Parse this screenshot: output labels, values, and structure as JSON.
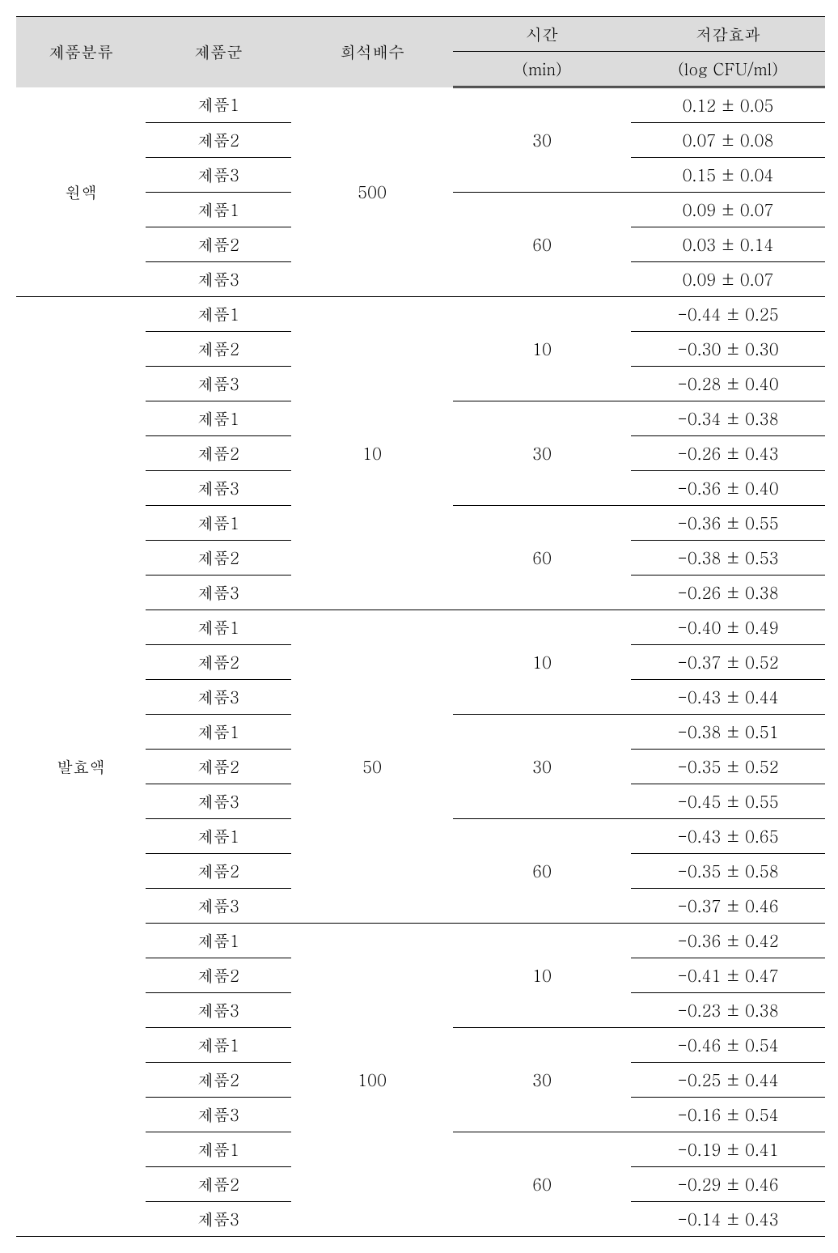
{
  "headers": {
    "category": "제품분류",
    "group": "제품군",
    "dilution": "희석배수",
    "time_top": "시간",
    "time_bot": "(min)",
    "effect_top": "저감효과",
    "effect_bot": "(log CFU/ml)"
  },
  "colors": {
    "header_bg": "#dcdcdc",
    "border": "#000000",
    "text": "#000000",
    "bg": "#ffffff"
  },
  "rows": [
    {
      "cat": "원액",
      "grp": "제품1",
      "dil": "500",
      "tim": "30",
      "eff": "0.12 ± 0.05"
    },
    {
      "cat": "원액",
      "grp": "제품2",
      "dil": "500",
      "tim": "30",
      "eff": "0.07 ± 0.08"
    },
    {
      "cat": "원액",
      "grp": "제품3",
      "dil": "500",
      "tim": "30",
      "eff": "0.15 ± 0.04"
    },
    {
      "cat": "원액",
      "grp": "제품1",
      "dil": "500",
      "tim": "60",
      "eff": "0.09 ± 0.07"
    },
    {
      "cat": "원액",
      "grp": "제품2",
      "dil": "500",
      "tim": "60",
      "eff": "0.03 ± 0.14"
    },
    {
      "cat": "원액",
      "grp": "제품3",
      "dil": "500",
      "tim": "60",
      "eff": "0.09 ± 0.07"
    },
    {
      "cat": "발효액",
      "grp": "제품1",
      "dil": "10",
      "tim": "10",
      "eff": "-0.44 ± 0.25"
    },
    {
      "cat": "발효액",
      "grp": "제품2",
      "dil": "10",
      "tim": "10",
      "eff": "-0.30 ± 0.30"
    },
    {
      "cat": "발효액",
      "grp": "제품3",
      "dil": "10",
      "tim": "10",
      "eff": "-0.28 ± 0.40"
    },
    {
      "cat": "발효액",
      "grp": "제품1",
      "dil": "10",
      "tim": "30",
      "eff": "-0.34 ± 0.38"
    },
    {
      "cat": "발효액",
      "grp": "제품2",
      "dil": "10",
      "tim": "30",
      "eff": "-0.26 ± 0.43"
    },
    {
      "cat": "발효액",
      "grp": "제품3",
      "dil": "10",
      "tim": "30",
      "eff": "-0.36 ± 0.40"
    },
    {
      "cat": "발효액",
      "grp": "제품1",
      "dil": "10",
      "tim": "60",
      "eff": "-0.36 ± 0.55"
    },
    {
      "cat": "발효액",
      "grp": "제품2",
      "dil": "10",
      "tim": "60",
      "eff": "-0.38 ± 0.53"
    },
    {
      "cat": "발효액",
      "grp": "제품3",
      "dil": "10",
      "tim": "60",
      "eff": "-0.26 ± 0.38"
    },
    {
      "cat": "발효액",
      "grp": "제품1",
      "dil": "50",
      "tim": "10",
      "eff": "-0.40 ± 0.49"
    },
    {
      "cat": "발효액",
      "grp": "제품2",
      "dil": "50",
      "tim": "10",
      "eff": "-0.37 ± 0.52"
    },
    {
      "cat": "발효액",
      "grp": "제품3",
      "dil": "50",
      "tim": "10",
      "eff": "-0.43 ± 0.44"
    },
    {
      "cat": "발효액",
      "grp": "제품1",
      "dil": "50",
      "tim": "30",
      "eff": "-0.38 ± 0.51"
    },
    {
      "cat": "발효액",
      "grp": "제품2",
      "dil": "50",
      "tim": "30",
      "eff": "-0.35 ± 0.52"
    },
    {
      "cat": "발효액",
      "grp": "제품3",
      "dil": "50",
      "tim": "30",
      "eff": "-0.45 ± 0.55"
    },
    {
      "cat": "발효액",
      "grp": "제품1",
      "dil": "50",
      "tim": "60",
      "eff": "-0.43 ± 0.65"
    },
    {
      "cat": "발효액",
      "grp": "제품2",
      "dil": "50",
      "tim": "60",
      "eff": "-0.35 ± 0.58"
    },
    {
      "cat": "발효액",
      "grp": "제품3",
      "dil": "50",
      "tim": "60",
      "eff": "-0.37 ± 0.46"
    },
    {
      "cat": "발효액",
      "grp": "제품1",
      "dil": "100",
      "tim": "10",
      "eff": "-0.36 ± 0.42"
    },
    {
      "cat": "발효액",
      "grp": "제품2",
      "dil": "100",
      "tim": "10",
      "eff": "-0.41 ± 0.47"
    },
    {
      "cat": "발효액",
      "grp": "제품3",
      "dil": "100",
      "tim": "10",
      "eff": "-0.23 ± 0.38"
    },
    {
      "cat": "발효액",
      "grp": "제품1",
      "dil": "100",
      "tim": "30",
      "eff": "-0.46 ± 0.54"
    },
    {
      "cat": "발효액",
      "grp": "제품2",
      "dil": "100",
      "tim": "30",
      "eff": "-0.25 ± 0.44"
    },
    {
      "cat": "발효액",
      "grp": "제품3",
      "dil": "100",
      "tim": "30",
      "eff": "-0.16 ± 0.54"
    },
    {
      "cat": "발효액",
      "grp": "제품1",
      "dil": "100",
      "tim": "60",
      "eff": "-0.19 ± 0.41"
    },
    {
      "cat": "발효액",
      "grp": "제품2",
      "dil": "100",
      "tim": "60",
      "eff": "-0.29 ± 0.46"
    },
    {
      "cat": "발효액",
      "grp": "제품3",
      "dil": "100",
      "tim": "60",
      "eff": "-0.14 ± 0.43"
    }
  ]
}
